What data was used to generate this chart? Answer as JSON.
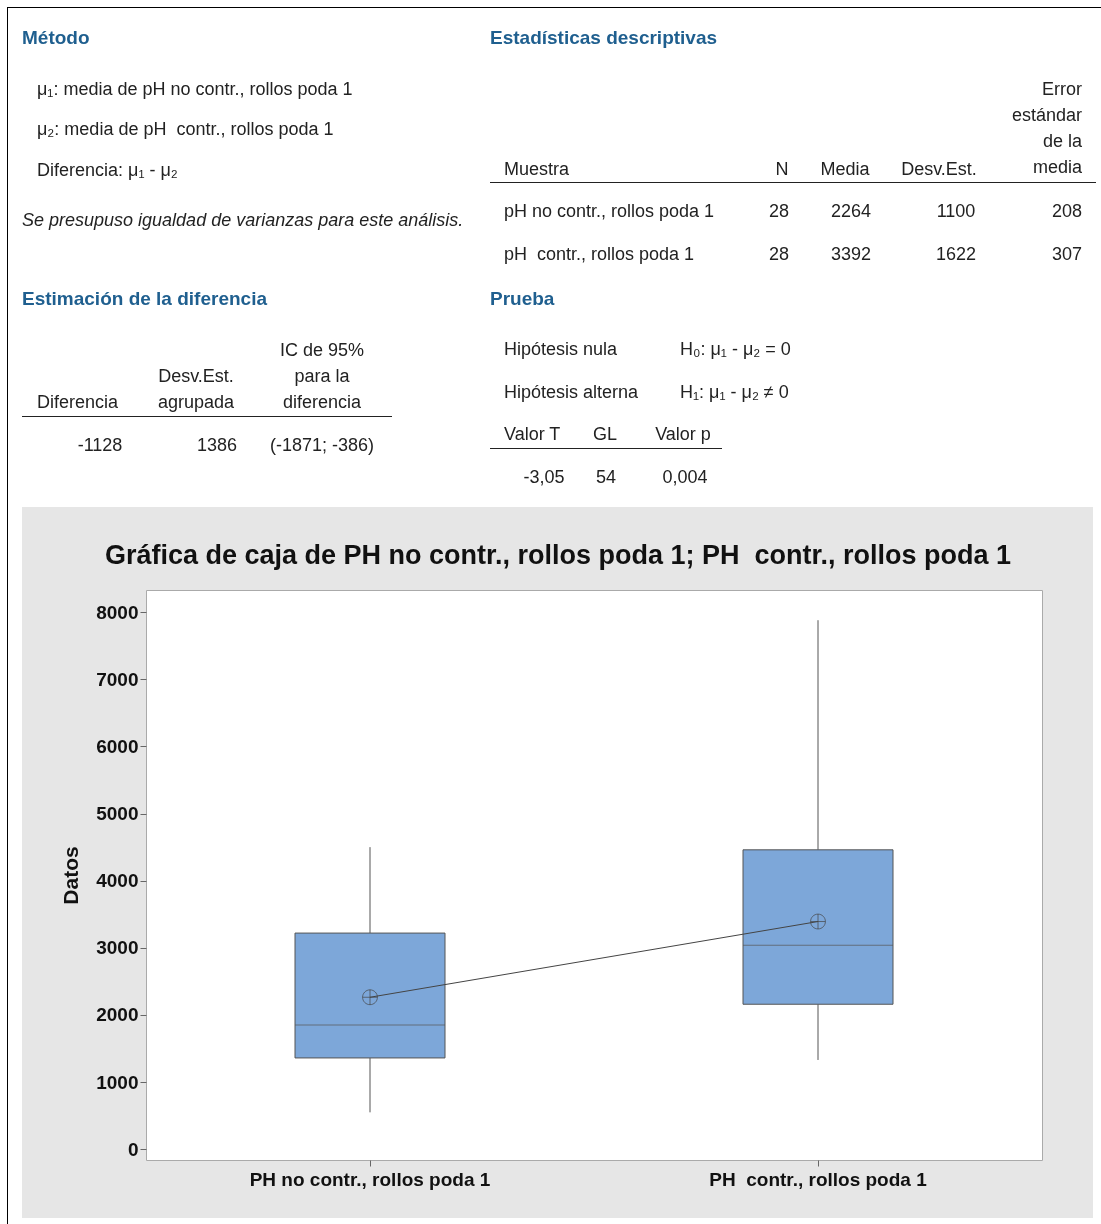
{
  "chart_data": [
    {
      "type": "other",
      "annotations": [
        "Método",
        "μ₁: media de pH no contr., rollos poda 1",
        "μ₂: media de pH  contr., rollos poda 1",
        "Diferencia: μ₁ - μ₂",
        "Se presupuso igualdad de varianzas para este análisis.",
        "Estimación de la diferencia",
        "Diferencia",
        "Desv.Est. agrupada",
        "IC de 95% para la diferencia",
        "-1128",
        "1386",
        "(-1871; -386)",
        "Estadísticas descriptivas",
        "Muestra",
        "N",
        "Media",
        "Desv.Est.",
        "Error estándar de la media",
        "pH no contr., rollos poda 1",
        "28",
        "2264",
        "1100",
        "208",
        "pH  contr., rollos poda 1",
        "28",
        "3392",
        "1622",
        "307",
        "Prueba",
        "Hipótesis nula",
        "H₀: μ₁ - μ₂ = 0",
        "Hipótesis alterna",
        "H₁: μ₁ - μ₂ ≠ 0",
        "Valor T",
        "GL",
        "Valor p",
        "-3,05",
        "54",
        "0,004"
      ]
    },
    {
      "type": "box",
      "title": "Gráfica de caja de PH no contr., rollos poda 1; PH  contr., rollos poda 1",
      "ylabel": "Datos",
      "categories": [
        "PH no contr., rollos poda 1",
        "PH  contr., rollos poda 1"
      ],
      "color": "#7da7d9",
      "boxes": [
        {
          "low": 550,
          "q1": 1360,
          "median": 1850,
          "q3": 3220,
          "high": 4500,
          "mean": 2264
        },
        {
          "low": 1330,
          "q1": 2160,
          "median": 3040,
          "q3": 4460,
          "high": 7880,
          "mean": 3392
        }
      ],
      "series": [
        {
          "type": "line",
          "color": "#444444",
          "values": [
            2264,
            3392
          ]
        }
      ],
      "ylim": [
        -160,
        8330
      ],
      "yticks": [
        0,
        1000,
        2000,
        3000,
        4000,
        5000,
        6000,
        7000,
        8000
      ]
    }
  ]
}
